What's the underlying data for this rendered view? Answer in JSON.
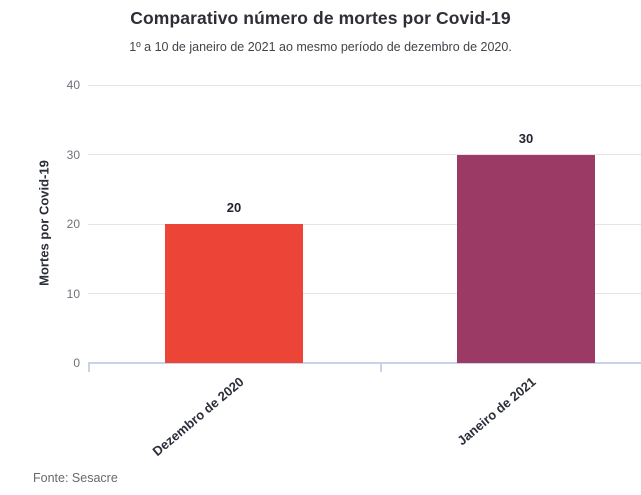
{
  "chart_data": {
    "type": "bar",
    "title": "Comparativo número de mortes por Covid-19",
    "subtitle": "1º a 10 de janeiro de 2021 ao mesmo período de dezembro de 2020.",
    "categories": [
      "Dezembro de 2020",
      "Janeiro de 2021"
    ],
    "values": [
      20,
      30
    ],
    "bar_colors": [
      "#ed4438",
      "#9c3a66"
    ],
    "xlabel": "",
    "ylabel": "Mortes por Covid-19",
    "ylim": [
      0,
      40
    ],
    "yticks": [
      0,
      10,
      20,
      30,
      40
    ],
    "grid": true,
    "legend_position": "none",
    "source": "Fonte: Sesacre"
  },
  "colors": {
    "bar_december": "#ed4438",
    "bar_january": "#9c3a66",
    "gridline": "#e5e5e7",
    "axis_line": "#c9d2e6",
    "title_text": "#2f2e37",
    "tick_text": "#6f7079"
  }
}
